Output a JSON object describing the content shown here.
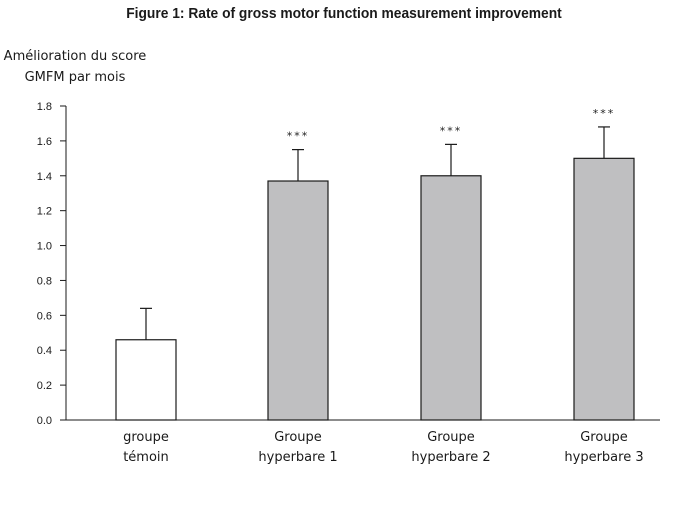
{
  "chart_data": {
    "type": "bar",
    "title": "Figure 1: Rate of gross motor function measurement improvement",
    "ylabel_lines": [
      "Amélioration du score",
      "GMFM par mois"
    ],
    "xlabel": "",
    "ylim": [
      0,
      1.8
    ],
    "yticks": [
      "0.0",
      "0.2",
      "0.4",
      "0.6",
      "0.8",
      "1.0",
      "1.2",
      "1.4",
      "1.6",
      "1.8"
    ],
    "categories": [
      [
        "groupe",
        "témoin"
      ],
      [
        "Groupe",
        "hyperbare 1"
      ],
      [
        "Groupe",
        "hyperbare 2"
      ],
      [
        "Groupe",
        "hyperbare 3"
      ]
    ],
    "values": [
      0.46,
      1.37,
      1.4,
      1.5
    ],
    "error_upper": [
      0.64,
      1.55,
      1.58,
      1.68
    ],
    "significance": [
      "",
      "***",
      "***",
      "***"
    ],
    "bar_colors": [
      "#ffffff",
      "#bfbfc1",
      "#bfbfc1",
      "#bfbfc1"
    ],
    "grid": false
  }
}
